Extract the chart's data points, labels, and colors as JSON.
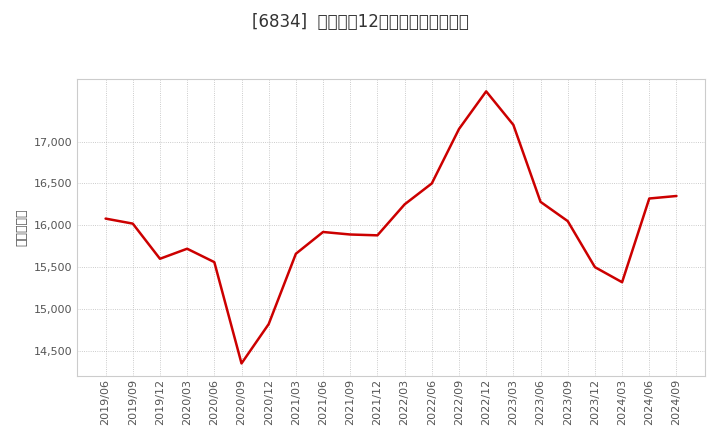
{
  "title": "[6834]  売上高の12か月移動合計の推移",
  "ylabel": "（百万円）",
  "line_color": "#cc0000",
  "background_color": "#ffffff",
  "grid_color": "#aaaaaa",
  "ylim": [
    14200,
    17750
  ],
  "yticks": [
    14500,
    15000,
    15500,
    16000,
    16500,
    17000
  ],
  "dates": [
    "2019/06",
    "2019/09",
    "2019/12",
    "2020/03",
    "2020/06",
    "2020/09",
    "2020/12",
    "2021/03",
    "2021/06",
    "2021/09",
    "2021/12",
    "2022/03",
    "2022/06",
    "2022/09",
    "2022/12",
    "2023/03",
    "2023/06",
    "2023/09",
    "2023/12",
    "2024/03",
    "2024/06",
    "2024/09"
  ],
  "values": [
    16080,
    16020,
    15600,
    15720,
    15560,
    14350,
    14820,
    15660,
    15920,
    15890,
    15880,
    16250,
    16500,
    17150,
    17600,
    17200,
    16280,
    16050,
    15500,
    15320,
    16320,
    16350
  ],
  "title_fontsize": 12,
  "ylabel_fontsize": 9,
  "tick_fontsize": 8,
  "title_color": "#333333",
  "tick_color": "#555555"
}
